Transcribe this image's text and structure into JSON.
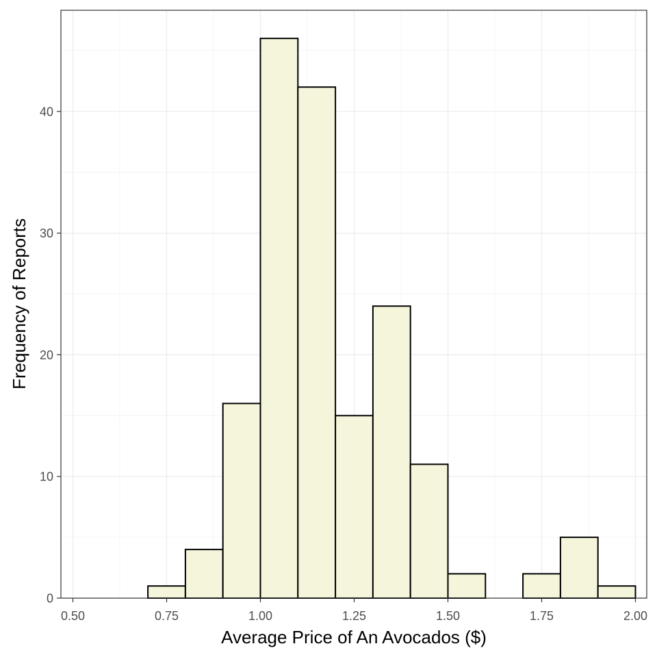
{
  "chart_data": {
    "type": "bar",
    "subtype": "histogram",
    "xlabel": "Average Price of An Avocados ($)",
    "ylabel": "Frequency of Reports",
    "xlim": [
      0.5,
      2.0
    ],
    "ylim": [
      0,
      46
    ],
    "x_ticks": [
      0.5,
      0.75,
      1.0,
      1.25,
      1.5,
      1.75,
      2.0
    ],
    "x_tick_labels": [
      "0.50",
      "0.75",
      "1.00",
      "1.25",
      "1.50",
      "1.75",
      "2.00"
    ],
    "y_ticks": [
      0,
      10,
      20,
      30,
      40
    ],
    "y_tick_labels": [
      "0",
      "10",
      "20",
      "30",
      "40"
    ],
    "bin_width": 0.1,
    "bins": [
      {
        "x0": 0.7,
        "x1": 0.8,
        "count": 1
      },
      {
        "x0": 0.8,
        "x1": 0.9,
        "count": 4
      },
      {
        "x0": 0.9,
        "x1": 1.0,
        "count": 16
      },
      {
        "x0": 1.0,
        "x1": 1.1,
        "count": 46
      },
      {
        "x0": 1.1,
        "x1": 1.2,
        "count": 42
      },
      {
        "x0": 1.2,
        "x1": 1.3,
        "count": 15
      },
      {
        "x0": 1.3,
        "x1": 1.4,
        "count": 24
      },
      {
        "x0": 1.4,
        "x1": 1.5,
        "count": 11
      },
      {
        "x0": 1.5,
        "x1": 1.6,
        "count": 2
      },
      {
        "x0": 1.6,
        "x1": 1.7,
        "count": 0
      },
      {
        "x0": 1.7,
        "x1": 1.8,
        "count": 2
      },
      {
        "x0": 1.8,
        "x1": 1.9,
        "count": 5
      },
      {
        "x0": 1.9,
        "x1": 2.0,
        "count": 1
      }
    ],
    "grid": true,
    "legend": "none",
    "colors": {
      "bar_fill": "#F5F5DC",
      "bar_stroke": "#000000",
      "grid_major": "#EBEBEB",
      "grid_minor": "#F4F4F4",
      "panel_border": "#333333",
      "tick_label": "#4D4D4D"
    }
  }
}
